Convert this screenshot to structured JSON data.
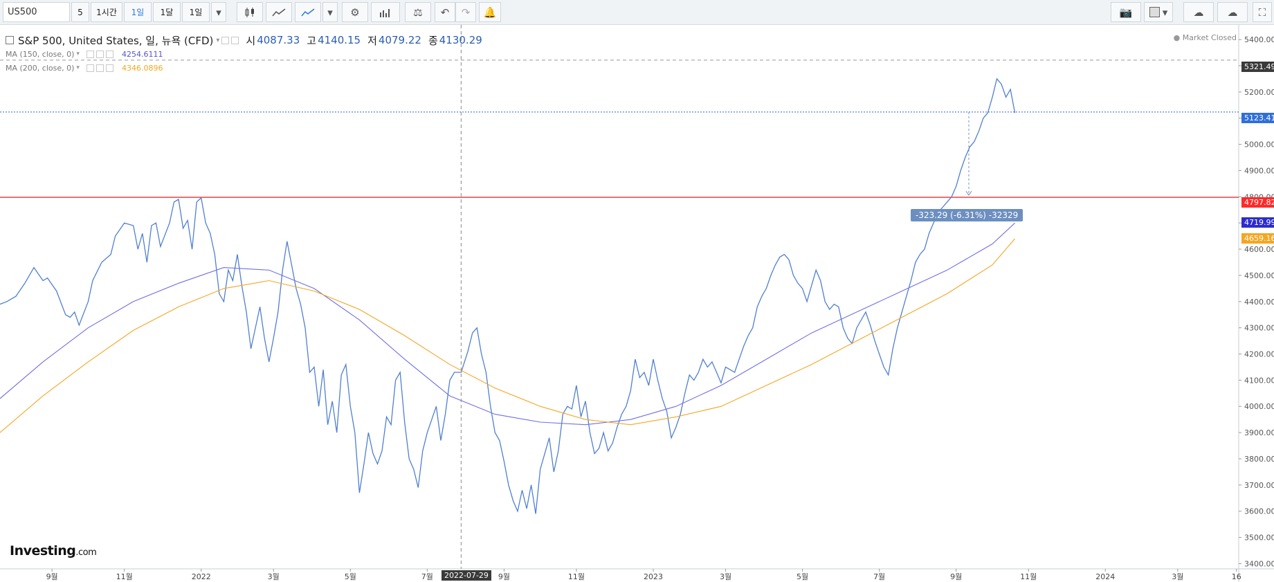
{
  "toolbar": {
    "symbol": "US500",
    "intervals": [
      "5",
      "1시간",
      "1일",
      "1달",
      "1일"
    ],
    "active_interval": "1일"
  },
  "legend": {
    "title": "S&P 500, United States, 일, 뉴욕 (CFD)",
    "o_label": "시",
    "o": "4087.33",
    "h_label": "고",
    "h": "4140.15",
    "l_label": "저",
    "l": "4079.22",
    "c_label": "종",
    "c": "4130.29",
    "ma150_label": "MA (150, close, 0)",
    "ma150_value": "4254.6111",
    "ma200_label": "MA (200, close, 0)",
    "ma200_value": "4346.0896"
  },
  "status": {
    "market": "Market Closed"
  },
  "labels": {
    "price_top": "5321.49",
    "price_last": "5123.41",
    "price_red": "4797.82",
    "price_ma150": "4719.99",
    "price_ma200": "4659.16",
    "measure": "-323.29 (-6.31%) -32329",
    "crosshair_date": "2022-07-29"
  },
  "brand": {
    "name": "Investing",
    "suffix": ".com"
  },
  "colors": {
    "price": "#4f7fd1",
    "ma150": "#6f6fe8",
    "ma200": "#f5a623",
    "hline": "#ff3b3b",
    "dotted": "#2f5fd0"
  },
  "chart_data": {
    "type": "line",
    "y_ticks": [
      3400,
      3500,
      3600,
      3700,
      3800,
      3900,
      4000,
      4100,
      4200,
      4300,
      4400,
      4500,
      4600,
      4700,
      4800,
      4900,
      5000,
      5100,
      5200,
      5300,
      5400
    ],
    "x_ticks": [
      {
        "label": "9월",
        "t": 2021.67
      },
      {
        "label": "11월",
        "t": 2021.83
      },
      {
        "label": "2022",
        "t": 2022.0
      },
      {
        "label": "3월",
        "t": 2022.16
      },
      {
        "label": "5월",
        "t": 2022.33
      },
      {
        "label": "7월",
        "t": 2022.5
      },
      {
        "label": "9월",
        "t": 2022.67
      },
      {
        "label": "11월",
        "t": 2022.83
      },
      {
        "label": "2023",
        "t": 2023.0
      },
      {
        "label": "3월",
        "t": 2023.16
      },
      {
        "label": "5월",
        "t": 2023.33
      },
      {
        "label": "7월",
        "t": 2023.5
      },
      {
        "label": "9월",
        "t": 2023.67
      },
      {
        "label": "11월",
        "t": 2023.83
      },
      {
        "label": "2024",
        "t": 2024.0
      },
      {
        "label": "3월",
        "t": 2024.16
      },
      {
        "label": "16",
        "t": 2024.29
      }
    ],
    "ylim": [
      3380,
      5440
    ],
    "xlim": [
      2021.555,
      2024.295
    ],
    "hline": 4797.82,
    "dotted_hline": 5123.41,
    "dashed_hline": 5321.49,
    "crosshair_t": 2022.575,
    "series": [
      {
        "name": "S&P 500",
        "points": [
          [
            2021.555,
            4390
          ],
          [
            2021.57,
            4400
          ],
          [
            2021.59,
            4420
          ],
          [
            2021.61,
            4470
          ],
          [
            2021.63,
            4530
          ],
          [
            2021.65,
            4480
          ],
          [
            2021.66,
            4490
          ],
          [
            2021.68,
            4440
          ],
          [
            2021.7,
            4350
          ],
          [
            2021.71,
            4340
          ],
          [
            2021.72,
            4360
          ],
          [
            2021.73,
            4310
          ],
          [
            2021.75,
            4400
          ],
          [
            2021.76,
            4480
          ],
          [
            2021.78,
            4550
          ],
          [
            2021.8,
            4580
          ],
          [
            2021.81,
            4650
          ],
          [
            2021.83,
            4700
          ],
          [
            2021.85,
            4690
          ],
          [
            2021.86,
            4600
          ],
          [
            2021.87,
            4660
          ],
          [
            2021.88,
            4550
          ],
          [
            2021.89,
            4690
          ],
          [
            2021.9,
            4700
          ],
          [
            2021.91,
            4610
          ],
          [
            2021.93,
            4700
          ],
          [
            2021.94,
            4780
          ],
          [
            2021.95,
            4790
          ],
          [
            2021.96,
            4680
          ],
          [
            2021.97,
            4710
          ],
          [
            2021.98,
            4600
          ],
          [
            2021.99,
            4780
          ],
          [
            2022.0,
            4796
          ],
          [
            2022.01,
            4700
          ],
          [
            2022.02,
            4660
          ],
          [
            2022.03,
            4580
          ],
          [
            2022.04,
            4430
          ],
          [
            2022.05,
            4400
          ],
          [
            2022.06,
            4520
          ],
          [
            2022.07,
            4480
          ],
          [
            2022.08,
            4580
          ],
          [
            2022.09,
            4460
          ],
          [
            2022.1,
            4360
          ],
          [
            2022.11,
            4220
          ],
          [
            2022.12,
            4300
          ],
          [
            2022.13,
            4380
          ],
          [
            2022.14,
            4260
          ],
          [
            2022.15,
            4170
          ],
          [
            2022.16,
            4260
          ],
          [
            2022.17,
            4360
          ],
          [
            2022.18,
            4520
          ],
          [
            2022.19,
            4630
          ],
          [
            2022.2,
            4540
          ],
          [
            2022.21,
            4450
          ],
          [
            2022.22,
            4390
          ],
          [
            2022.23,
            4300
          ],
          [
            2022.24,
            4130
          ],
          [
            2022.25,
            4150
          ],
          [
            2022.26,
            4000
          ],
          [
            2022.27,
            4140
          ],
          [
            2022.28,
            3930
          ],
          [
            2022.29,
            4020
          ],
          [
            2022.3,
            3900
          ],
          [
            2022.31,
            4120
          ],
          [
            2022.32,
            4160
          ],
          [
            2022.33,
            4000
          ],
          [
            2022.34,
            3900
          ],
          [
            2022.35,
            3670
          ],
          [
            2022.36,
            3780
          ],
          [
            2022.37,
            3900
          ],
          [
            2022.38,
            3820
          ],
          [
            2022.39,
            3780
          ],
          [
            2022.4,
            3830
          ],
          [
            2022.41,
            3960
          ],
          [
            2022.42,
            3930
          ],
          [
            2022.43,
            4100
          ],
          [
            2022.44,
            4130
          ],
          [
            2022.45,
            3940
          ],
          [
            2022.46,
            3800
          ],
          [
            2022.47,
            3760
          ],
          [
            2022.48,
            3690
          ],
          [
            2022.49,
            3830
          ],
          [
            2022.5,
            3900
          ],
          [
            2022.51,
            3950
          ],
          [
            2022.52,
            4000
          ],
          [
            2022.53,
            3870
          ],
          [
            2022.54,
            3970
          ],
          [
            2022.55,
            4100
          ],
          [
            2022.56,
            4130
          ],
          [
            2022.575,
            4130
          ],
          [
            2022.59,
            4210
          ],
          [
            2022.6,
            4280
          ],
          [
            2022.61,
            4300
          ],
          [
            2022.62,
            4200
          ],
          [
            2022.63,
            4130
          ],
          [
            2022.64,
            4000
          ],
          [
            2022.65,
            3900
          ],
          [
            2022.66,
            3870
          ],
          [
            2022.67,
            3790
          ],
          [
            2022.68,
            3700
          ],
          [
            2022.69,
            3640
          ],
          [
            2022.7,
            3600
          ],
          [
            2022.71,
            3680
          ],
          [
            2022.72,
            3610
          ],
          [
            2022.73,
            3700
          ],
          [
            2022.74,
            3590
          ],
          [
            2022.75,
            3760
          ],
          [
            2022.76,
            3820
          ],
          [
            2022.77,
            3880
          ],
          [
            2022.78,
            3750
          ],
          [
            2022.79,
            3830
          ],
          [
            2022.8,
            3970
          ],
          [
            2022.81,
            4000
          ],
          [
            2022.82,
            3990
          ],
          [
            2022.83,
            4080
          ],
          [
            2022.84,
            3960
          ],
          [
            2022.85,
            4020
          ],
          [
            2022.86,
            3900
          ],
          [
            2022.87,
            3820
          ],
          [
            2022.88,
            3840
          ],
          [
            2022.89,
            3900
          ],
          [
            2022.9,
            3830
          ],
          [
            2022.91,
            3860
          ],
          [
            2022.92,
            3920
          ],
          [
            2022.93,
            3970
          ],
          [
            2022.94,
            4000
          ],
          [
            2022.95,
            4060
          ],
          [
            2022.96,
            4180
          ],
          [
            2022.97,
            4110
          ],
          [
            2022.98,
            4130
          ],
          [
            2022.99,
            4080
          ],
          [
            2023.0,
            4180
          ],
          [
            2023.01,
            4100
          ],
          [
            2023.02,
            4030
          ],
          [
            2023.03,
            3980
          ],
          [
            2023.04,
            3880
          ],
          [
            2023.05,
            3920
          ],
          [
            2023.06,
            3970
          ],
          [
            2023.07,
            4050
          ],
          [
            2023.08,
            4120
          ],
          [
            2023.09,
            4100
          ],
          [
            2023.1,
            4130
          ],
          [
            2023.11,
            4180
          ],
          [
            2023.12,
            4150
          ],
          [
            2023.13,
            4170
          ],
          [
            2023.14,
            4130
          ],
          [
            2023.15,
            4090
          ],
          [
            2023.16,
            4150
          ],
          [
            2023.17,
            4140
          ],
          [
            2023.18,
            4130
          ],
          [
            2023.19,
            4180
          ],
          [
            2023.2,
            4230
          ],
          [
            2023.21,
            4270
          ],
          [
            2023.22,
            4300
          ],
          [
            2023.23,
            4380
          ],
          [
            2023.24,
            4420
          ],
          [
            2023.25,
            4450
          ],
          [
            2023.26,
            4500
          ],
          [
            2023.27,
            4540
          ],
          [
            2023.28,
            4570
          ],
          [
            2023.29,
            4580
          ],
          [
            2023.3,
            4560
          ],
          [
            2023.31,
            4500
          ],
          [
            2023.32,
            4470
          ],
          [
            2023.33,
            4450
          ],
          [
            2023.34,
            4400
          ],
          [
            2023.35,
            4460
          ],
          [
            2023.36,
            4520
          ],
          [
            2023.37,
            4480
          ],
          [
            2023.38,
            4400
          ],
          [
            2023.39,
            4370
          ],
          [
            2023.4,
            4390
          ],
          [
            2023.41,
            4380
          ],
          [
            2023.42,
            4300
          ],
          [
            2023.43,
            4260
          ],
          [
            2023.44,
            4240
          ],
          [
            2023.45,
            4300
          ],
          [
            2023.46,
            4330
          ],
          [
            2023.47,
            4360
          ],
          [
            2023.48,
            4310
          ],
          [
            2023.49,
            4250
          ],
          [
            2023.5,
            4200
          ],
          [
            2023.51,
            4150
          ],
          [
            2023.52,
            4120
          ],
          [
            2023.53,
            4220
          ],
          [
            2023.54,
            4300
          ],
          [
            2023.55,
            4360
          ],
          [
            2023.56,
            4420
          ],
          [
            2023.57,
            4480
          ],
          [
            2023.58,
            4550
          ],
          [
            2023.59,
            4580
          ],
          [
            2023.6,
            4600
          ],
          [
            2023.61,
            4660
          ],
          [
            2023.62,
            4700
          ],
          [
            2023.63,
            4740
          ],
          [
            2023.64,
            4760
          ],
          [
            2023.65,
            4780
          ],
          [
            2023.66,
            4800
          ],
          [
            2023.67,
            4840
          ],
          [
            2023.68,
            4900
          ],
          [
            2023.69,
            4950
          ],
          [
            2023.7,
            4990
          ],
          [
            2023.71,
            5010
          ],
          [
            2023.72,
            5050
          ],
          [
            2023.73,
            5100
          ],
          [
            2023.74,
            5120
          ],
          [
            2023.75,
            5180
          ],
          [
            2023.76,
            5250
          ],
          [
            2023.77,
            5230
          ],
          [
            2023.78,
            5180
          ],
          [
            2023.79,
            5210
          ],
          [
            2023.8,
            5120
          ]
        ]
      },
      {
        "name": "MA (150, close, 0)",
        "points": [
          [
            2021.555,
            4030
          ],
          [
            2021.65,
            4170
          ],
          [
            2021.75,
            4300
          ],
          [
            2021.85,
            4400
          ],
          [
            2021.95,
            4470
          ],
          [
            2022.05,
            4530
          ],
          [
            2022.15,
            4520
          ],
          [
            2022.25,
            4450
          ],
          [
            2022.35,
            4330
          ],
          [
            2022.45,
            4180
          ],
          [
            2022.55,
            4040
          ],
          [
            2022.65,
            3970
          ],
          [
            2022.75,
            3940
          ],
          [
            2022.85,
            3930
          ],
          [
            2022.95,
            3950
          ],
          [
            2023.05,
            4000
          ],
          [
            2023.15,
            4080
          ],
          [
            2023.25,
            4180
          ],
          [
            2023.35,
            4280
          ],
          [
            2023.45,
            4360
          ],
          [
            2023.55,
            4440
          ],
          [
            2023.65,
            4520
          ],
          [
            2023.75,
            4620
          ],
          [
            2023.8,
            4700
          ]
        ]
      },
      {
        "name": "MA (200, close, 0)",
        "points": [
          [
            2021.555,
            3900
          ],
          [
            2021.65,
            4040
          ],
          [
            2021.75,
            4170
          ],
          [
            2021.85,
            4290
          ],
          [
            2021.95,
            4380
          ],
          [
            2022.05,
            4450
          ],
          [
            2022.15,
            4480
          ],
          [
            2022.25,
            4440
          ],
          [
            2022.35,
            4370
          ],
          [
            2022.45,
            4270
          ],
          [
            2022.55,
            4160
          ],
          [
            2022.65,
            4070
          ],
          [
            2022.75,
            4000
          ],
          [
            2022.85,
            3950
          ],
          [
            2022.95,
            3930
          ],
          [
            2023.05,
            3960
          ],
          [
            2023.15,
            4000
          ],
          [
            2023.25,
            4080
          ],
          [
            2023.35,
            4160
          ],
          [
            2023.45,
            4250
          ],
          [
            2023.55,
            4340
          ],
          [
            2023.65,
            4430
          ],
          [
            2023.75,
            4540
          ],
          [
            2023.8,
            4640
          ]
        ]
      }
    ]
  }
}
